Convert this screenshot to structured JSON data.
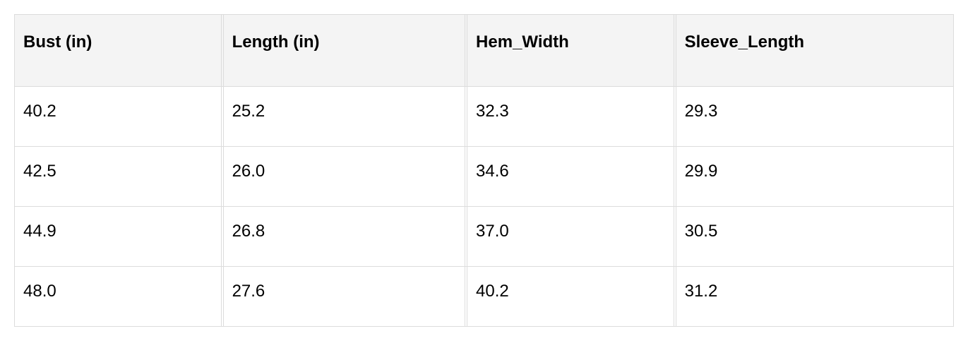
{
  "table": {
    "headers": [
      "Bust (in)",
      "Length (in)",
      "Hem_Width",
      "Sleeve_Length"
    ],
    "rows": [
      [
        "40.2",
        "25.2",
        "32.3",
        "29.3"
      ],
      [
        "42.5",
        "26.0",
        "34.6",
        "29.9"
      ],
      [
        "44.9",
        "26.8",
        "37.0",
        "30.5"
      ],
      [
        "48.0",
        "27.6",
        "40.2",
        "31.2"
      ]
    ]
  }
}
